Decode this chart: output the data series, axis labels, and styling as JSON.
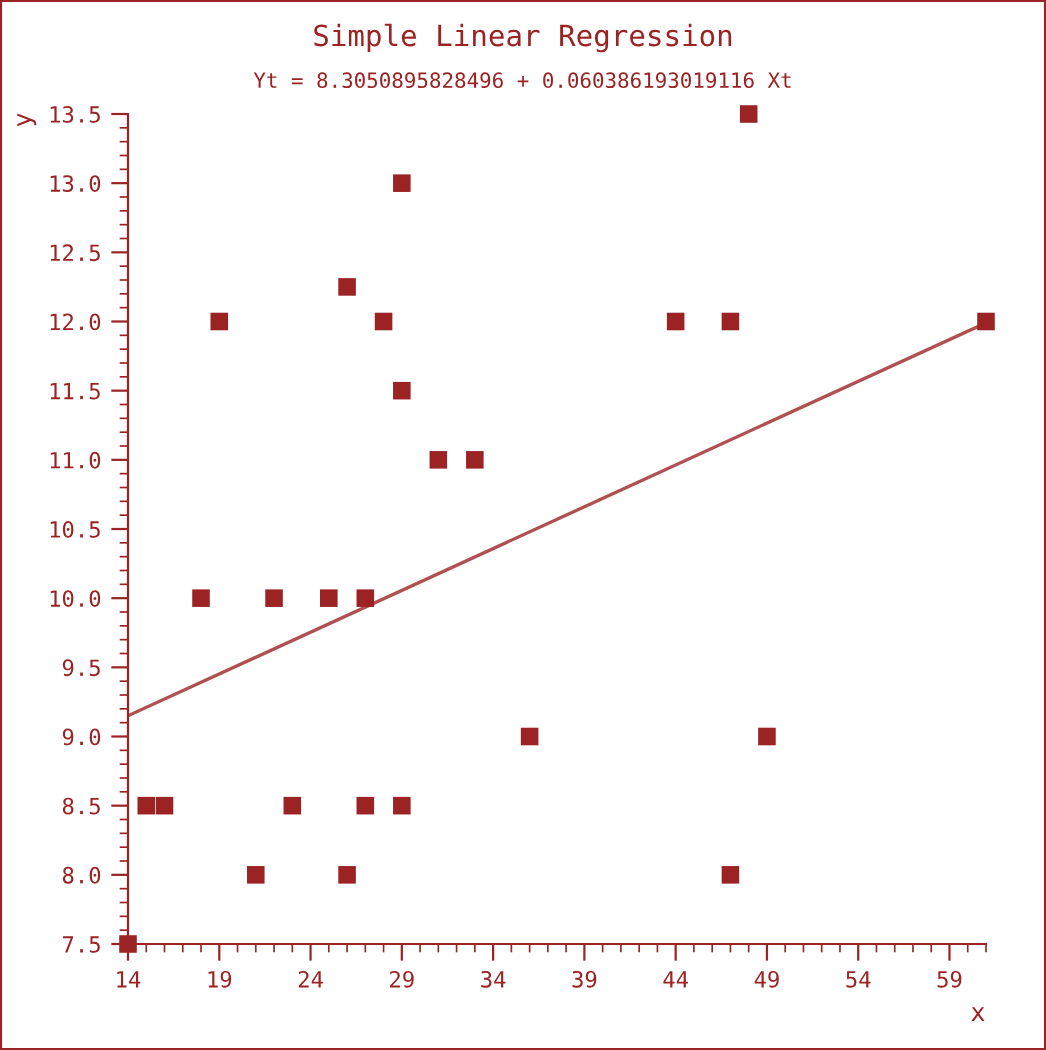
{
  "chart_data": {
    "type": "scatter",
    "title": "Simple Linear Regression",
    "subtitle": "Yt = 8.3050895828496 + 0.060386193019116 Xt",
    "xlabel": "x",
    "ylabel": "y",
    "xlim": [
      14,
      61
    ],
    "xticks": [
      14,
      19,
      24,
      29,
      34,
      39,
      44,
      49,
      54,
      59
    ],
    "ylim": [
      7.5,
      13.5
    ],
    "yticks": [
      {
        "value": 7.5,
        "label": "7.5"
      },
      {
        "value": 8,
        "label": "8.0"
      },
      {
        "value": 8.5,
        "label": "8.5"
      },
      {
        "value": 9,
        "label": "9.0"
      },
      {
        "value": 9.5,
        "label": "9.5"
      },
      {
        "value": 10,
        "label": "10.0"
      },
      {
        "value": 10.5,
        "label": "10.5"
      },
      {
        "value": 11,
        "label": "11.0"
      },
      {
        "value": 11.5,
        "label": "11.5"
      },
      {
        "value": 12,
        "label": "12.0"
      },
      {
        "value": 12.5,
        "label": "12.5"
      },
      {
        "value": 13,
        "label": "13.0"
      },
      {
        "value": 13.5,
        "label": "13.5"
      }
    ],
    "grid": false,
    "legend": false,
    "series": [
      {
        "marker": "square",
        "color": "#9b2323",
        "x": [
          14,
          15,
          16,
          18,
          19,
          21,
          22,
          23,
          25,
          26,
          26,
          27,
          27,
          28,
          29,
          29,
          29,
          31,
          33,
          36,
          44,
          47,
          47,
          48,
          49,
          61
        ],
        "values": [
          7.5,
          8.5,
          8.5,
          10,
          12,
          8,
          10,
          8.5,
          10,
          12.25,
          8,
          10,
          8.5,
          12,
          13,
          11.5,
          8.5,
          11,
          11,
          9,
          12,
          12,
          8,
          13.5,
          9,
          12
        ]
      },
      {
        "type": "line",
        "marker": "none",
        "color": "#b05050",
        "x": [
          14,
          61
        ],
        "values": [
          9.15,
          11.99
        ]
      }
    ]
  }
}
